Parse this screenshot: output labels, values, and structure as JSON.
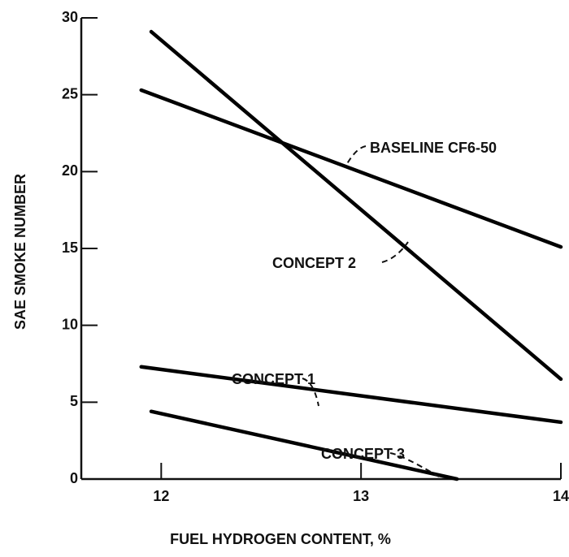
{
  "chart_data": {
    "type": "line",
    "x_label": "FUEL HYDROGEN CONTENT, %",
    "y_label": "SAE SMOKE NUMBER",
    "xlim": [
      11.6,
      14
    ],
    "xticks": [
      12,
      13,
      14
    ],
    "ylim": [
      0,
      30
    ],
    "yticks": [
      0,
      5,
      10,
      15,
      20,
      25,
      30
    ],
    "series": [
      {
        "name": "BASELINE CF6-50",
        "color": "#000000",
        "x": [
          11.9,
          14
        ],
        "values": [
          25.3,
          15.1
        ]
      },
      {
        "name": "CONCEPT 2",
        "color": "#000000",
        "x": [
          11.95,
          14
        ],
        "values": [
          29.1,
          6.5
        ]
      },
      {
        "name": "CONCEPT 1",
        "color": "#000000",
        "x": [
          11.9,
          14
        ],
        "values": [
          7.3,
          3.7
        ]
      },
      {
        "name": "CONCEPT 3",
        "color": "#000000",
        "x": [
          11.95,
          13.48
        ],
        "values": [
          4.4,
          0
        ]
      }
    ]
  }
}
